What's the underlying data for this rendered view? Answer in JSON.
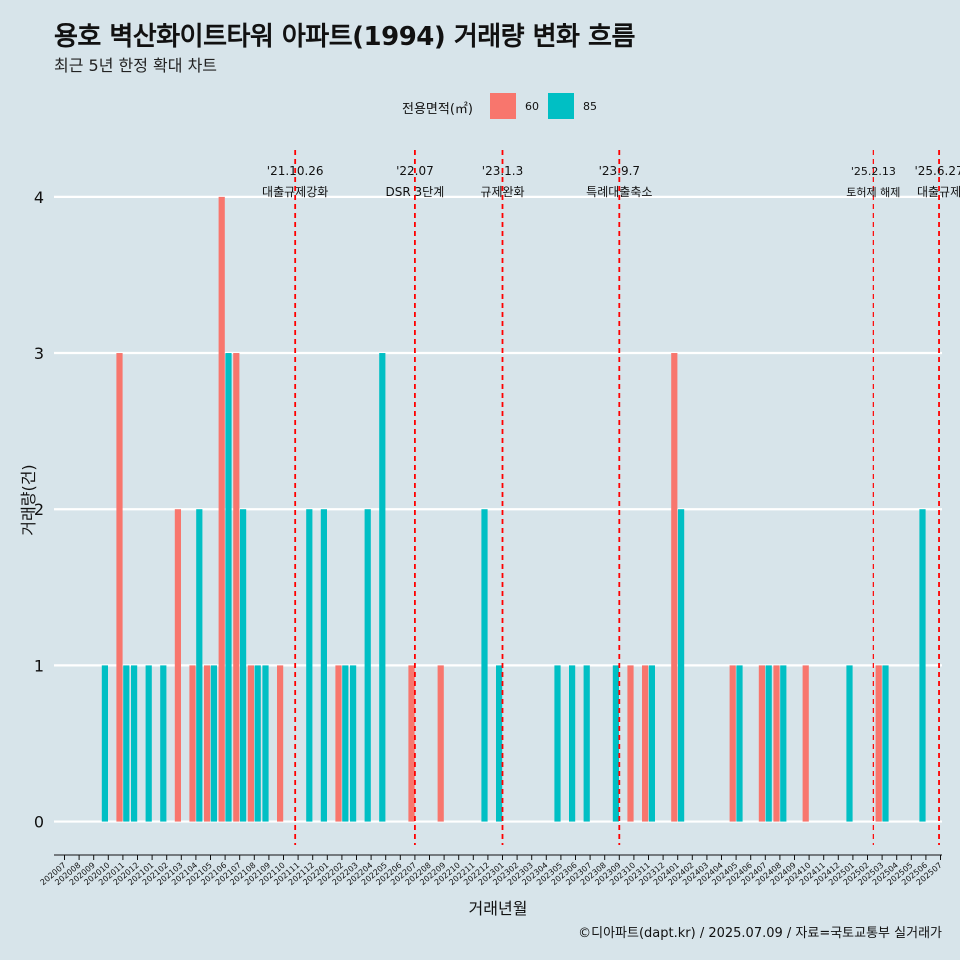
{
  "title": "용호 벽산화이트타워 아파트(1994) 거래량 변화 흐름",
  "subtitle": "최근 5년 한정 확대 차트",
  "caption": "©디아파트(dapt.kr) / 2025.07.09 / 자료=국토교통부 실거래가",
  "colors": {
    "s60": "#f8766d",
    "s85": "#00bfc4",
    "background": "#d7e4ea",
    "gridline": "#ffffff",
    "eventline": "#ff0000"
  },
  "chart_data": {
    "type": "bar",
    "xlabel": "거래년월",
    "ylabel": "거래량(건)",
    "ylim": [
      -0.15,
      4.3
    ],
    "yticks": [
      0,
      1,
      2,
      3,
      4
    ],
    "legend_title": "전용면적(㎡)",
    "legend_position": "top",
    "categories": [
      "202007",
      "202008",
      "202009",
      "202010",
      "202011",
      "202012",
      "202101",
      "202102",
      "202103",
      "202104",
      "202105",
      "202106",
      "202107",
      "202108",
      "202109",
      "202110",
      "202111",
      "202112",
      "202201",
      "202202",
      "202203",
      "202204",
      "202205",
      "202206",
      "202207",
      "202208",
      "202209",
      "202210",
      "202211",
      "202212",
      "202301",
      "202302",
      "202303",
      "202304",
      "202305",
      "202306",
      "202307",
      "202308",
      "202309",
      "202310",
      "202311",
      "202312",
      "202401",
      "202402",
      "202403",
      "202404",
      "202405",
      "202406",
      "202407",
      "202408",
      "202409",
      "202410",
      "202411",
      "202412",
      "202501",
      "202502",
      "202503",
      "202504",
      "202505",
      "202506",
      "202507"
    ],
    "series": [
      {
        "name": "60",
        "values": [
          0,
          0,
          0,
          0,
          3,
          0,
          0,
          0,
          2,
          1,
          1,
          4,
          3,
          1,
          0,
          1,
          0,
          0,
          0,
          1,
          0,
          0,
          0,
          0,
          1,
          0,
          1,
          0,
          0,
          0,
          0,
          0,
          0,
          0,
          0,
          0,
          0,
          0,
          0,
          1,
          1,
          0,
          3,
          0,
          0,
          0,
          1,
          0,
          1,
          1,
          0,
          1,
          0,
          0,
          0,
          0,
          1,
          0,
          0,
          0,
          0
        ]
      },
      {
        "name": "85",
        "values": [
          0,
          0,
          0,
          1,
          1,
          1,
          1,
          1,
          0,
          2,
          1,
          3,
          2,
          1,
          1,
          0,
          0,
          2,
          2,
          1,
          1,
          2,
          3,
          0,
          0,
          0,
          0,
          0,
          0,
          2,
          1,
          0,
          0,
          0,
          1,
          1,
          1,
          0,
          1,
          0,
          1,
          0,
          2,
          0,
          0,
          0,
          1,
          0,
          1,
          1,
          0,
          0,
          0,
          0,
          1,
          0,
          1,
          0,
          0,
          2,
          0
        ]
      }
    ],
    "events": [
      {
        "x": 202110.8,
        "date": "'21.10.26",
        "label": "대출규제강화"
      },
      {
        "x": 202207,
        "date": "'22.07",
        "label": "DSR 3단계"
      },
      {
        "x": 202301,
        "date": "'23.1.3",
        "label": "규제완화"
      },
      {
        "x": 202309,
        "date": "'23.9.7",
        "label": "특례대출축소"
      },
      {
        "x": 202502.4,
        "date": "'25.2.13",
        "label": "토허제 해제"
      },
      {
        "x": 202506.9,
        "date": "'25.6.27",
        "label": "대출규제"
      }
    ]
  }
}
